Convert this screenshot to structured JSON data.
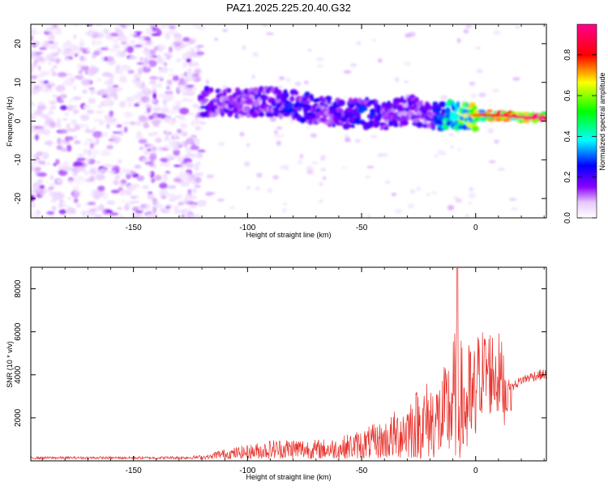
{
  "title": "PAZ1.2025.225.20.40.G32",
  "chart_data": [
    {
      "type": "heatmap",
      "xlabel": "Height of straight line (km)",
      "ylabel": "Frequency (Hz)",
      "xlim": [
        -195,
        31
      ],
      "ylim": [
        -25,
        25
      ],
      "x_ticks": [
        -150,
        -100,
        -50,
        0
      ],
      "y_ticks": [
        -20,
        -10,
        0,
        10,
        20
      ],
      "colorbar": {
        "label": "Normalized spectral amplitude",
        "range": [
          0,
          0.95
        ],
        "ticks": [
          0.0,
          0.2,
          0.4,
          0.6,
          0.8
        ],
        "colors": [
          "#ffffff",
          "#8b00ff",
          "#0000ff",
          "#00ffff",
          "#00ff00",
          "#ffff00",
          "#ff0000",
          "#ff0090"
        ]
      },
      "ridge": {
        "x": [
          -120,
          -110,
          -100,
          -90,
          -80,
          -70,
          -60,
          -50,
          -40,
          -30,
          -20,
          -10,
          0,
          10,
          20,
          30
        ],
        "frequency": [
          5,
          5,
          4.5,
          5,
          4,
          3,
          2,
          2,
          1.5,
          3,
          1,
          1.5,
          1.5,
          1.5,
          1,
          1
        ],
        "amplitude": [
          0.25,
          0.2,
          0.2,
          0.22,
          0.3,
          0.25,
          0.25,
          0.3,
          0.25,
          0.2,
          0.25,
          0.55,
          0.75,
          0.85,
          0.9,
          0.95
        ]
      },
      "noise_region": {
        "x_from": -195,
        "x_to": -120,
        "amplitude": 0.08
      }
    },
    {
      "type": "line",
      "xlabel": "Height of straight line (km)",
      "ylabel": "SNR (10 * v/v)",
      "xlim": [
        -195,
        31
      ],
      "ylim": [
        0,
        9000
      ],
      "x_ticks": [
        -150,
        -100,
        -50,
        0
      ],
      "y_ticks": [
        2000,
        4000,
        6000,
        8000
      ],
      "line_color": "#e8302a",
      "envelope": {
        "x": [
          -195,
          -140,
          -125,
          -110,
          -100,
          -90,
          -80,
          -70,
          -60,
          -50,
          -40,
          -35,
          -30,
          -25,
          -20,
          -15,
          -12,
          -10,
          -8,
          -5,
          -2,
          0,
          5,
          10,
          12,
          15,
          20,
          25,
          31
        ],
        "y": [
          200,
          200,
          250,
          450,
          650,
          900,
          1000,
          900,
          1000,
          1400,
          1800,
          2300,
          3000,
          3400,
          3800,
          3900,
          4900,
          6000,
          6000,
          5200,
          5600,
          5400,
          5800,
          5500,
          5000,
          3500,
          3900,
          4100,
          4200
        ]
      }
    }
  ]
}
